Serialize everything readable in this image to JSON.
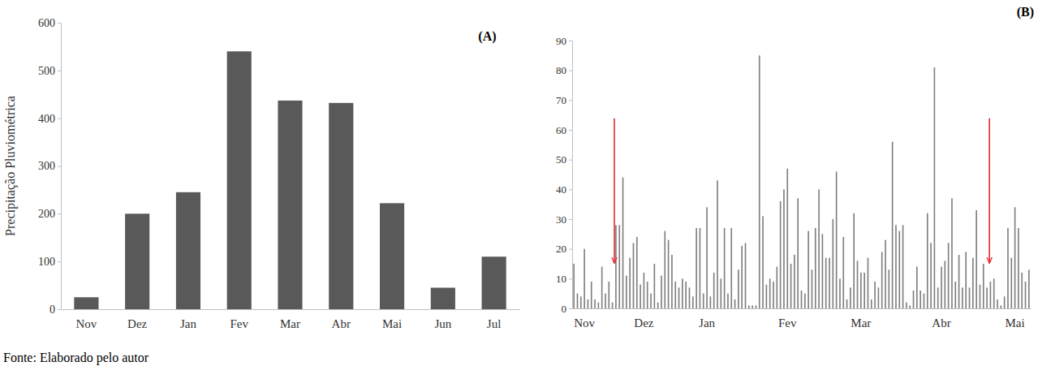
{
  "chart_data": [
    {
      "type": "bar",
      "title": "(A)",
      "ylabel": "Precipitação Pluviométrica",
      "annotations": [
        "Fonte: Elaborado pelo autor"
      ],
      "categories": [
        "Nov",
        "Dez",
        "Jan",
        "Fev",
        "Mar",
        "Abr",
        "Mai",
        "Jun",
        "Jul"
      ],
      "values": [
        25,
        200,
        245,
        540,
        437,
        432,
        222,
        45,
        110
      ],
      "color": "#595959",
      "ylim": [
        0,
        600
      ],
      "yticks": [
        0,
        100,
        200,
        300,
        400,
        500,
        600
      ],
      "grid": false
    },
    {
      "type": "bar",
      "title": "(B)",
      "categories": [
        null,
        null,
        null,
        "Nov",
        null,
        null,
        null,
        null,
        null,
        null,
        null,
        null,
        null,
        null,
        null,
        null,
        null,
        null,
        null,
        null,
        "Dez",
        null,
        null,
        null,
        null,
        null,
        null,
        null,
        null,
        null,
        null,
        null,
        null,
        null,
        null,
        null,
        null,
        null,
        "Jan",
        null,
        null,
        null,
        null,
        null,
        null,
        null,
        null,
        null,
        null,
        null,
        null,
        null,
        null,
        null,
        null,
        null,
        null,
        null,
        null,
        null,
        null,
        "Fev",
        null,
        null,
        null,
        null,
        null,
        null,
        null,
        null,
        null,
        null,
        null,
        null,
        null,
        null,
        null,
        null,
        null,
        null,
        null,
        null,
        "Mar",
        null,
        null,
        null,
        null,
        null,
        null,
        null,
        null,
        null,
        null,
        null,
        null,
        null,
        null,
        null,
        null,
        null,
        null,
        null,
        null,
        null,
        null,
        "Abr",
        null,
        null,
        null,
        null,
        null,
        null,
        null,
        null,
        null,
        null,
        null,
        null,
        null,
        null,
        null,
        null,
        null,
        null,
        null,
        null,
        "Mai",
        null,
        null,
        null,
        null
      ],
      "values": [
        15,
        5,
        4,
        20,
        3,
        9,
        3,
        2,
        14,
        5,
        9,
        2,
        28,
        28,
        44,
        11,
        17,
        22,
        24,
        8,
        12,
        9,
        5,
        15,
        2,
        11,
        26,
        23,
        18,
        9,
        7,
        10,
        9,
        7,
        4,
        27,
        27,
        5,
        34,
        4,
        12,
        43,
        10,
        27,
        5,
        27,
        3,
        13,
        21,
        22,
        1,
        1,
        1,
        85,
        31,
        8,
        10,
        9,
        14,
        36,
        40,
        47,
        15,
        18,
        37,
        6,
        5,
        26,
        13,
        27,
        40,
        25,
        17,
        17,
        30,
        46,
        10,
        24,
        3,
        7,
        32,
        16,
        12,
        12,
        17,
        3,
        9,
        7,
        19,
        23,
        13,
        56,
        28,
        26,
        28,
        2,
        1,
        6,
        14,
        6,
        5,
        32,
        22,
        81,
        7,
        14,
        16,
        22,
        37,
        9,
        18,
        7,
        19,
        7,
        17,
        33,
        8,
        15,
        7,
        9,
        10,
        3,
        1,
        4,
        27,
        17,
        34,
        27,
        12,
        9,
        13
      ],
      "color": "#7f7f7f",
      "ylim": [
        0,
        90
      ],
      "yticks": [
        0,
        10,
        20,
        30,
        40,
        50,
        60,
        70,
        80,
        90
      ],
      "grid": false
    }
  ]
}
